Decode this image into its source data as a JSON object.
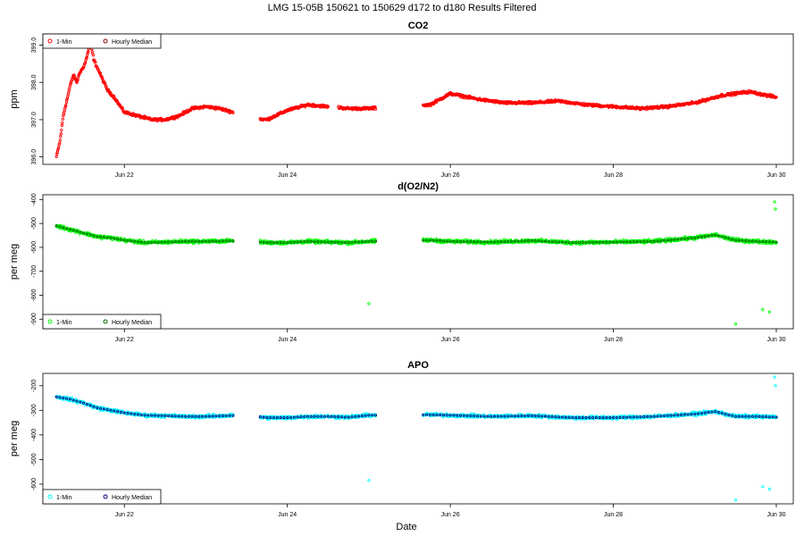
{
  "figure": {
    "title": "LMG   15-05B    150621 to 150629    d172 to d180    Results Filtered",
    "xlabel": "Date"
  },
  "chart_data": [
    {
      "type": "scatter",
      "title": "CO2",
      "ylabel": "ppm",
      "x_ticks": [
        "Jun 22",
        "Jun 24",
        "Jun 26",
        "Jun 28",
        "Jun 30"
      ],
      "y_ticks": [
        "396.0",
        "397.0",
        "398.0",
        "399.0"
      ],
      "ylim": [
        395.8,
        399.3
      ],
      "xlim": [
        "2015-06-21T00:00",
        "2015-06-30T05:00"
      ],
      "legend_position": "top-left",
      "grid": false,
      "series": [
        {
          "name": "1-Min",
          "color": "#ff0000",
          "marker": "open-circle",
          "x": [
            "2015-06-21T04:00",
            "2015-06-21T05:00",
            "2015-06-21T06:00",
            "2015-06-21T07:00",
            "2015-06-21T08:00",
            "2015-06-21T09:00",
            "2015-06-21T10:00",
            "2015-06-21T11:00",
            "2015-06-21T12:00",
            "2015-06-21T13:00",
            "2015-06-21T14:00",
            "2015-06-21T15:00",
            "2015-06-21T17:00",
            "2015-06-21T19:00",
            "2015-06-21T21:00",
            "2015-06-22T00:00",
            "2015-06-22T04:00",
            "2015-06-22T08:00",
            "2015-06-22T12:00",
            "2015-06-22T16:00",
            "2015-06-22T20:00",
            "2015-06-23T00:00",
            "2015-06-23T04:00",
            "2015-06-23T08:00",
            "2015-06-23T12:00",
            "2015-06-23T18:00",
            "2015-06-24T00:00",
            "2015-06-24T06:00",
            "2015-06-24T12:00",
            "2015-06-24T18:00",
            "2015-06-25T00:00",
            "2015-06-25T08:00",
            "2015-06-25T18:00",
            "2015-06-26T00:00",
            "2015-06-26T08:00",
            "2015-06-26T16:00",
            "2015-06-27T00:00",
            "2015-06-27T08:00",
            "2015-06-27T16:00",
            "2015-06-28T00:00",
            "2015-06-28T08:00",
            "2015-06-28T16:00",
            "2015-06-29T00:00",
            "2015-06-29T08:00",
            "2015-06-29T16:00",
            "2015-06-30T00:00"
          ],
          "y": [
            396.0,
            396.4,
            397.1,
            397.5,
            397.9,
            398.2,
            398.0,
            398.3,
            398.4,
            398.7,
            399.1,
            398.6,
            398.2,
            397.8,
            397.6,
            397.2,
            397.1,
            397.0,
            397.0,
            397.1,
            397.3,
            397.35,
            397.3,
            397.2,
            397.05,
            397.0,
            397.25,
            397.4,
            397.35,
            397.3,
            397.3,
            397.35,
            397.4,
            397.7,
            397.55,
            397.45,
            397.45,
            397.5,
            397.4,
            397.35,
            397.3,
            397.35,
            397.45,
            397.65,
            397.75,
            397.6
          ]
        },
        {
          "name": "Hourly Median",
          "color": "#8b0000",
          "marker": "open-circle",
          "x": [],
          "y": []
        }
      ],
      "gaps": [
        [
          "2015-06-23T08:00",
          "2015-06-23T16:00"
        ],
        [
          "2015-06-24T12:00",
          "2015-06-24T15:00"
        ],
        [
          "2015-06-25T02:00",
          "2015-06-25T16:00"
        ]
      ]
    },
    {
      "type": "scatter",
      "title": "d(O2/N2)",
      "ylabel": "per meg",
      "x_ticks": [
        "Jun 22",
        "Jun 24",
        "Jun 26",
        "Jun 28",
        "Jun 30"
      ],
      "y_ticks": [
        "-900",
        "-800",
        "-700",
        "-600",
        "-500",
        "-400"
      ],
      "ylim": [
        -940,
        -380
      ],
      "xlim": [
        "2015-06-21T00:00",
        "2015-06-30T05:00"
      ],
      "legend_position": "bottom-left",
      "grid": false,
      "series": [
        {
          "name": "1-Min",
          "color": "#00ff00",
          "marker": "open-circle",
          "x": [
            "2015-06-21T04:00",
            "2015-06-21T08:00",
            "2015-06-21T12:00",
            "2015-06-21T16:00",
            "2015-06-21T20:00",
            "2015-06-22T00:00",
            "2015-06-22T06:00",
            "2015-06-22T12:00",
            "2015-06-22T18:00",
            "2015-06-23T00:00",
            "2015-06-23T06:00",
            "2015-06-23T12:00",
            "2015-06-23T18:00",
            "2015-06-24T00:00",
            "2015-06-24T06:00",
            "2015-06-24T12:00",
            "2015-06-24T18:00",
            "2015-06-25T00:00",
            "2015-06-25T18:00",
            "2015-06-26T00:00",
            "2015-06-26T12:00",
            "2015-06-27T00:00",
            "2015-06-27T12:00",
            "2015-06-28T00:00",
            "2015-06-28T12:00",
            "2015-06-29T00:00",
            "2015-06-29T06:00",
            "2015-06-29T12:00",
            "2015-06-29T18:00",
            "2015-06-30T00:00"
          ],
          "y": [
            -510,
            -525,
            -540,
            -555,
            -560,
            -570,
            -580,
            -578,
            -575,
            -575,
            -573,
            -572,
            -580,
            -580,
            -575,
            -578,
            -580,
            -575,
            -570,
            -575,
            -578,
            -572,
            -580,
            -578,
            -575,
            -560,
            -548,
            -570,
            -575,
            -578
          ]
        },
        {
          "name": "Hourly Median",
          "color": "#006400",
          "marker": "open-circle",
          "x": [],
          "y": []
        }
      ],
      "outliers": [
        {
          "x": "2015-06-25T00:00",
          "y": -835
        },
        {
          "x": "2015-06-29T12:00",
          "y": -920
        },
        {
          "x": "2015-06-29T20:00",
          "y": -860
        },
        {
          "x": "2015-06-29T22:00",
          "y": -870
        },
        {
          "x": "2015-06-29T23:30",
          "y": -410
        },
        {
          "x": "2015-06-29T23:45",
          "y": -440
        }
      ],
      "gaps": [
        [
          "2015-06-23T08:00",
          "2015-06-23T16:00"
        ],
        [
          "2015-06-25T02:00",
          "2015-06-25T16:00"
        ]
      ]
    },
    {
      "type": "scatter",
      "title": "APO",
      "ylabel": "per meg",
      "x_ticks": [
        "Jun 22",
        "Jun 24",
        "Jun 26",
        "Jun 28",
        "Jun 30"
      ],
      "y_ticks": [
        "-600",
        "-500",
        "-400",
        "-300",
        "-200"
      ],
      "ylim": [
        -680,
        -150
      ],
      "xlim": [
        "2015-06-21T00:00",
        "2015-06-30T05:00"
      ],
      "legend_position": "bottom-left",
      "grid": false,
      "series": [
        {
          "name": "1-Min",
          "color": "#00ffff",
          "marker": "open-circle",
          "x": [
            "2015-06-21T04:00",
            "2015-06-21T08:00",
            "2015-06-21T12:00",
            "2015-06-21T16:00",
            "2015-06-21T20:00",
            "2015-06-22T00:00",
            "2015-06-22T06:00",
            "2015-06-22T12:00",
            "2015-06-22T18:00",
            "2015-06-23T00:00",
            "2015-06-23T06:00",
            "2015-06-23T12:00",
            "2015-06-23T18:00",
            "2015-06-24T00:00",
            "2015-06-24T06:00",
            "2015-06-24T12:00",
            "2015-06-24T18:00",
            "2015-06-25T00:00",
            "2015-06-25T18:00",
            "2015-06-26T00:00",
            "2015-06-26T12:00",
            "2015-06-27T00:00",
            "2015-06-27T12:00",
            "2015-06-28T00:00",
            "2015-06-28T12:00",
            "2015-06-29T00:00",
            "2015-06-29T06:00",
            "2015-06-29T12:00",
            "2015-06-29T18:00",
            "2015-06-30T00:00"
          ],
          "y": [
            -245,
            -255,
            -270,
            -290,
            -300,
            -310,
            -320,
            -322,
            -325,
            -325,
            -322,
            -320,
            -330,
            -330,
            -325,
            -325,
            -328,
            -320,
            -318,
            -320,
            -325,
            -322,
            -330,
            -330,
            -325,
            -315,
            -305,
            -325,
            -325,
            -328
          ]
        },
        {
          "name": "Hourly Median",
          "color": "#000080",
          "marker": "open-circle",
          "x": [],
          "y": []
        }
      ],
      "outliers": [
        {
          "x": "2015-06-25T00:00",
          "y": -585
        },
        {
          "x": "2015-06-29T12:00",
          "y": -665
        },
        {
          "x": "2015-06-29T20:00",
          "y": -610
        },
        {
          "x": "2015-06-29T22:00",
          "y": -620
        },
        {
          "x": "2015-06-29T23:30",
          "y": -165
        },
        {
          "x": "2015-06-29T23:45",
          "y": -200
        }
      ],
      "gaps": [
        [
          "2015-06-23T08:00",
          "2015-06-23T16:00"
        ],
        [
          "2015-06-25T02:00",
          "2015-06-25T16:00"
        ]
      ]
    }
  ]
}
